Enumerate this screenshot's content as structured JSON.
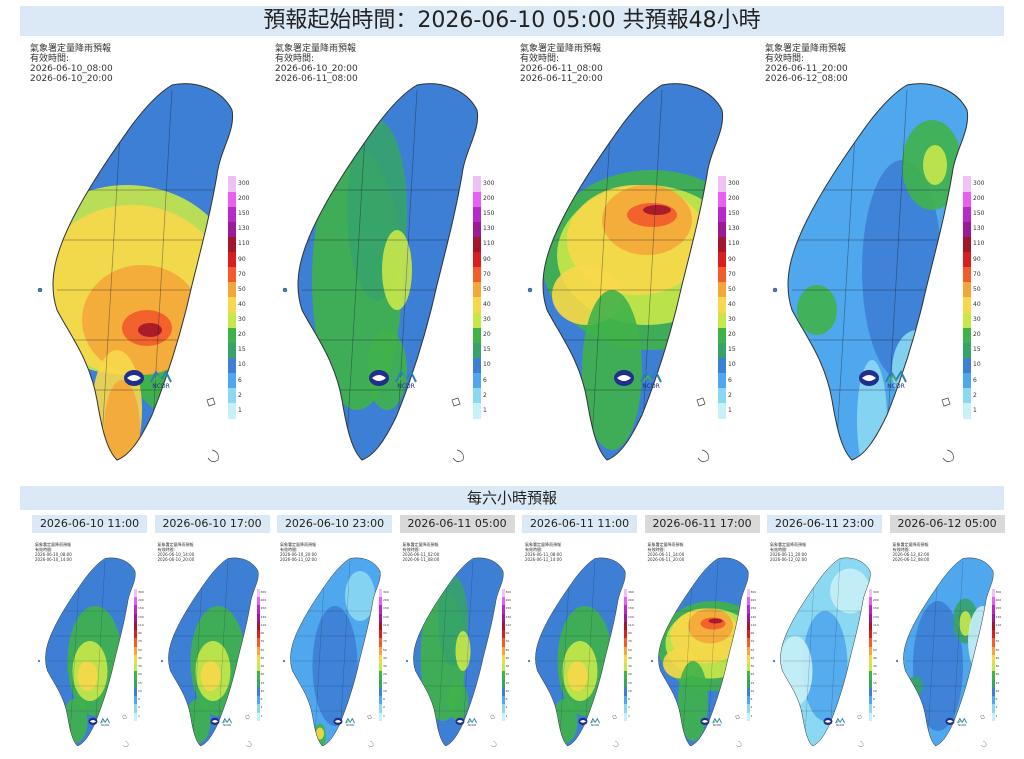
{
  "title": "預報起始時間：2026-06-10 05:00  共預報48小時",
  "panel_header": "氣象署定量降雨預報",
  "valid_label": "有效時間:",
  "big_panels": [
    {
      "start": "2026-06-10_08:00",
      "end": "2026-06-10_20:00",
      "pattern": "central-heavy"
    },
    {
      "start": "2026-06-10_20:00",
      "end": "2026-06-11_08:00",
      "pattern": "west-moderate"
    },
    {
      "start": "2026-06-11_08:00",
      "end": "2026-06-11_20:00",
      "pattern": "north-central-heavy"
    },
    {
      "start": "2026-06-11_20:00",
      "end": "2026-06-12_08:00",
      "pattern": "light"
    }
  ],
  "scale_values": [
    "300",
    "200",
    "150",
    "130",
    "110",
    "90",
    "70",
    "50",
    "40",
    "30",
    "20",
    "15",
    "10",
    "6",
    "2",
    "1"
  ],
  "scale_colors": [
    "#f0c2f3",
    "#e85ff2",
    "#b829c8",
    "#9a1a97",
    "#a3152b",
    "#d81e1e",
    "#f35a2c",
    "#f4a63a",
    "#f7d84a",
    "#c8e84a",
    "#3fb24a",
    "#36a36a",
    "#3c7fd5",
    "#4fa7ed",
    "#8ad8f2",
    "#c7f0f7"
  ],
  "logo_text": "NCDR",
  "six_hour_title": "每六小時預報",
  "six_hour_stamps": [
    {
      "label": "2026-06-10 11:00",
      "style": "blue"
    },
    {
      "label": "2026-06-10 17:00",
      "style": "blue"
    },
    {
      "label": "2026-06-10 23:00",
      "style": "blue"
    },
    {
      "label": "2026-06-11 05:00",
      "style": "grey"
    },
    {
      "label": "2026-06-11 11:00",
      "style": "blue"
    },
    {
      "label": "2026-06-11 17:00",
      "style": "grey"
    },
    {
      "label": "2026-06-11 23:00",
      "style": "blue"
    },
    {
      "label": "2026-06-12 05:00",
      "style": "grey"
    }
  ],
  "small_panels": [
    {
      "start": "2026-06-10_08:00",
      "end": "2026-06-10_14:00",
      "pattern": "central-moderate"
    },
    {
      "start": "2026-06-10_14:00",
      "end": "2026-06-10_20:00",
      "pattern": "central-moderate"
    },
    {
      "start": "2026-06-10_20:00",
      "end": "2026-06-11_02:00",
      "pattern": "light-south"
    },
    {
      "start": "2026-06-11_02:00",
      "end": "2026-06-11_08:00",
      "pattern": "west-moderate"
    },
    {
      "start": "2026-06-11_08:00",
      "end": "2026-06-11_14:00",
      "pattern": "central-moderate"
    },
    {
      "start": "2026-06-11_14:00",
      "end": "2026-06-11_20:00",
      "pattern": "north-central-heavy"
    },
    {
      "start": "2026-06-11_20:00",
      "end": "2026-06-12_02:00",
      "pattern": "very-light"
    },
    {
      "start": "2026-06-12_02:00",
      "end": "2026-06-12_08:00",
      "pattern": "light-north"
    }
  ]
}
